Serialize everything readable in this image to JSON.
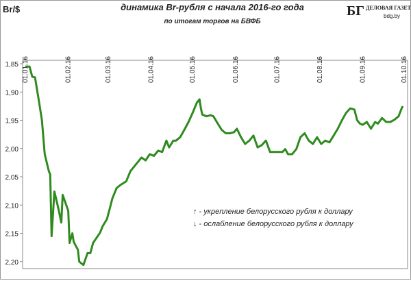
{
  "chart_data": {
    "type": "line",
    "title": "динамика  Br-рубля с начала 2016-го года",
    "subtitle": "по итогам торгов на БВФБ",
    "ylabel": "Br/$",
    "annotations": [
      "↑ - укрепление белорусского рубля к доллару",
      "↓ - ослабление белорусского рубля к доллару"
    ],
    "color": "#2f8a1f",
    "y_inverted": true,
    "grid": false,
    "xlim": [
      "01.01.16",
      "01.10.16"
    ],
    "xticks": [
      "01.01.16",
      "01.02.16",
      "01.03.16",
      "01.04.16",
      "01.05.16",
      "01.06.16",
      "01.07.16",
      "01.08.16",
      "01.09.16",
      "01.10.16"
    ],
    "ylim": [
      1.85,
      2.21
    ],
    "yticks": [
      {
        "value": 1.85,
        "label": "1,85"
      },
      {
        "value": 1.9,
        "label": "1,90"
      },
      {
        "value": 1.95,
        "label": "1,95"
      },
      {
        "value": 2.0,
        "label": "2,00"
      },
      {
        "value": 2.05,
        "label": "2,05"
      },
      {
        "value": 2.1,
        "label": "2,10"
      },
      {
        "value": 2.15,
        "label": "2,15"
      },
      {
        "value": 2.2,
        "label": "2,20"
      }
    ],
    "x": [
      "01.01.16",
      "04.01.16",
      "06.01.16",
      "08.01.16",
      "11.01.16",
      "13.01.16",
      "15.01.16",
      "18.01.16",
      "19.01.16",
      "20.01.16",
      "22.01.16",
      "25.01.16",
      "27.01.16",
      "28.01.16",
      "01.02.16",
      "02.02.16",
      "04.02.16",
      "05.02.16",
      "08.02.16",
      "09.02.16",
      "11.02.16",
      "12.02.16",
      "15.02.16",
      "17.02.16",
      "19.02.16",
      "24.02.16",
      "26.02.16",
      "29.02.16",
      "02.03.16",
      "04.03.16",
      "07.03.16",
      "10.03.16",
      "14.03.16",
      "17.03.16",
      "21.03.16",
      "23.03.16",
      "25.03.16",
      "28.03.16",
      "31.03.16",
      "03.04.16",
      "06.04.16",
      "09.04.16",
      "12.04.16",
      "14.04.16",
      "17.04.16",
      "19.04.16",
      "22.04.16",
      "25.04.16",
      "28.04.16",
      "01.05.16",
      "04.05.16",
      "06.05.16",
      "07.05.16",
      "08.05.16",
      "11.05.16",
      "14.05.16",
      "16.05.16",
      "19.05.16",
      "22.05.16",
      "25.05.16",
      "28.05.16",
      "31.05.16",
      "02.06.16",
      "05.06.16",
      "08.06.16",
      "11.06.16",
      "14.06.16",
      "17.06.16",
      "20.06.16",
      "23.06.16",
      "26.06.16",
      "29.06.16",
      "02.07.16",
      "05.07.16",
      "07.07.16",
      "09.07.16",
      "12.07.16",
      "15.07.16",
      "18.07.16",
      "21.07.16",
      "24.07.16",
      "27.07.16",
      "30.07.16",
      "02.08.16",
      "05.08.16",
      "08.08.16",
      "11.08.16",
      "14.08.16",
      "17.08.16",
      "20.08.16",
      "23.08.16",
      "26.08.16",
      "28.08.16",
      "30.08.16",
      "01.09.16",
      "04.09.16",
      "07.09.16",
      "10.09.16",
      "12.09.16",
      "15.09.16",
      "18.09.16",
      "21.09.16",
      "24.09.16",
      "27.09.16",
      "29.09.16",
      "30.09.16"
    ],
    "values": [
      1.855,
      1.855,
      1.873,
      1.874,
      1.919,
      1.95,
      2.01,
      2.04,
      2.046,
      2.155,
      2.076,
      2.107,
      2.131,
      2.082,
      2.11,
      2.167,
      2.15,
      2.165,
      2.179,
      2.2,
      2.204,
      2.206,
      2.185,
      2.185,
      2.167,
      2.149,
      2.137,
      2.125,
      2.107,
      2.088,
      2.07,
      2.064,
      2.058,
      2.04,
      2.028,
      2.022,
      2.016,
      2.021,
      2.01,
      2.013,
      2.004,
      2.006,
      1.986,
      1.998,
      1.986,
      1.986,
      1.98,
      1.967,
      1.953,
      1.937,
      1.919,
      1.913,
      1.929,
      1.94,
      1.943,
      1.941,
      1.943,
      1.955,
      1.967,
      1.973,
      1.973,
      1.971,
      1.965,
      1.98,
      1.992,
      1.986,
      1.977,
      1.998,
      1.994,
      1.986,
      2.006,
      2.006,
      2.006,
      2.006,
      2.001,
      2.01,
      2.01,
      2.001,
      1.98,
      1.973,
      1.986,
      1.992,
      1.98,
      1.992,
      1.986,
      1.989,
      1.977,
      1.965,
      1.95,
      1.937,
      1.929,
      1.931,
      1.95,
      1.956,
      1.958,
      1.953,
      1.965,
      1.953,
      1.956,
      1.946,
      1.953,
      1.953,
      1.949,
      1.943,
      1.93,
      1.925
    ]
  },
  "logo": {
    "mark": "БГ",
    "name": "ДЕЛОВАЯ ГАЗЕТА",
    "site": "bdg.by"
  }
}
